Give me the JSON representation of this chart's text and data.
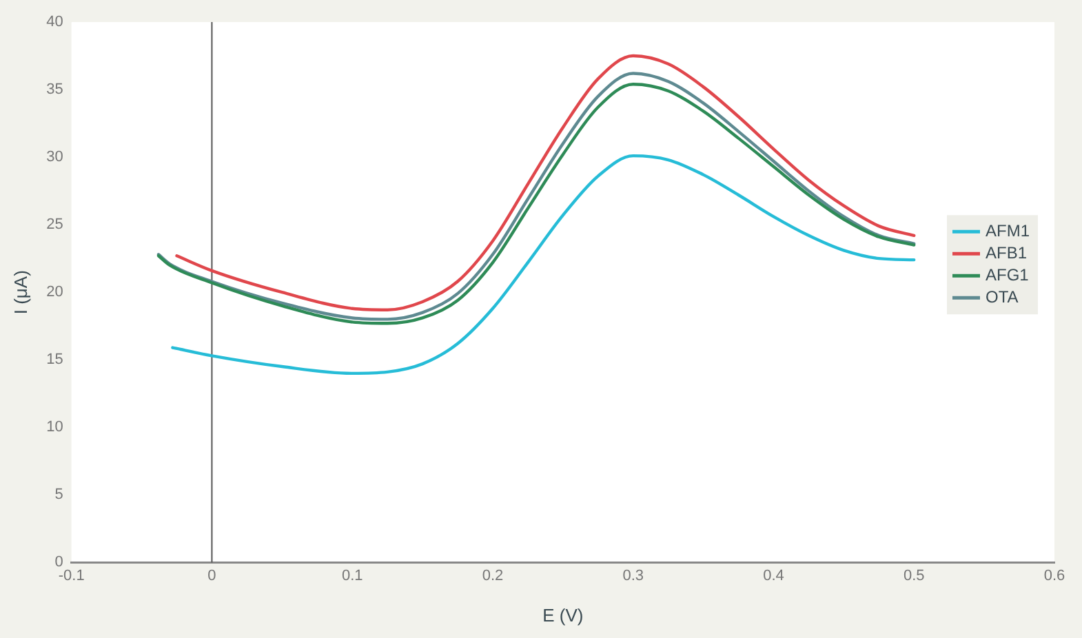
{
  "chart_data": {
    "type": "line",
    "xlabel": "E (V)",
    "ylabel": "I (μA)",
    "xlim": [
      -0.1,
      0.6
    ],
    "xticks": [
      -0.1,
      0,
      0.1,
      0.2,
      0.3,
      0.4,
      0.5,
      0.6
    ],
    "ylim": [
      0,
      40
    ],
    "yticks": [
      0,
      5,
      10,
      15,
      20,
      25,
      30,
      35,
      40
    ],
    "grid": false,
    "legend": "right",
    "marker": "none",
    "line_style": "solid",
    "ref_lines": [
      {
        "axis": "x",
        "value": 0,
        "color": "#555555"
      }
    ],
    "series": [
      {
        "name": "AFM1",
        "color": "#26bcd7",
        "x": [
          -0.028,
          0,
          0.05,
          0.1,
          0.125,
          0.15,
          0.175,
          0.2,
          0.225,
          0.25,
          0.275,
          0.3,
          0.325,
          0.35,
          0.375,
          0.4,
          0.425,
          0.45,
          0.475,
          0.5
        ],
        "values": [
          15.9,
          15.3,
          14.5,
          14.0,
          14.1,
          14.7,
          16.2,
          18.8,
          22.2,
          25.7,
          28.6,
          30.1,
          29.8,
          28.7,
          27.2,
          25.6,
          24.2,
          23.1,
          22.5,
          22.4
        ]
      },
      {
        "name": "AFB1",
        "color": "#e0474c",
        "x": [
          -0.025,
          0,
          0.05,
          0.1,
          0.125,
          0.15,
          0.175,
          0.2,
          0.225,
          0.25,
          0.275,
          0.3,
          0.325,
          0.35,
          0.375,
          0.4,
          0.425,
          0.45,
          0.475,
          0.5
        ],
        "values": [
          22.7,
          21.6,
          20.0,
          18.8,
          18.7,
          19.3,
          20.8,
          23.8,
          28.0,
          32.2,
          35.8,
          37.5,
          36.9,
          35.2,
          33.0,
          30.6,
          28.3,
          26.4,
          24.9,
          24.2
        ]
      },
      {
        "name": "AFG1",
        "color": "#2e8b57",
        "x": [
          -0.038,
          -0.03,
          0,
          0.05,
          0.1,
          0.125,
          0.15,
          0.175,
          0.2,
          0.225,
          0.25,
          0.275,
          0.3,
          0.325,
          0.35,
          0.375,
          0.4,
          0.425,
          0.45,
          0.475,
          0.5
        ],
        "values": [
          22.7,
          22.0,
          20.7,
          19.0,
          17.8,
          17.7,
          18.1,
          19.4,
          22.2,
          26.2,
          30.2,
          33.7,
          35.4,
          34.9,
          33.4,
          31.4,
          29.3,
          27.2,
          25.4,
          24.1,
          23.5
        ]
      },
      {
        "name": "OTA",
        "color": "#5e8a91",
        "x": [
          -0.038,
          -0.03,
          0,
          0.05,
          0.1,
          0.125,
          0.15,
          0.175,
          0.2,
          0.225,
          0.25,
          0.275,
          0.3,
          0.325,
          0.35,
          0.375,
          0.4,
          0.425,
          0.45,
          0.475,
          0.5
        ],
        "values": [
          22.8,
          22.1,
          20.8,
          19.2,
          18.1,
          18.0,
          18.5,
          19.9,
          22.8,
          26.9,
          31.0,
          34.5,
          36.2,
          35.6,
          34.0,
          31.9,
          29.7,
          27.5,
          25.6,
          24.2,
          23.6
        ]
      }
    ]
  }
}
